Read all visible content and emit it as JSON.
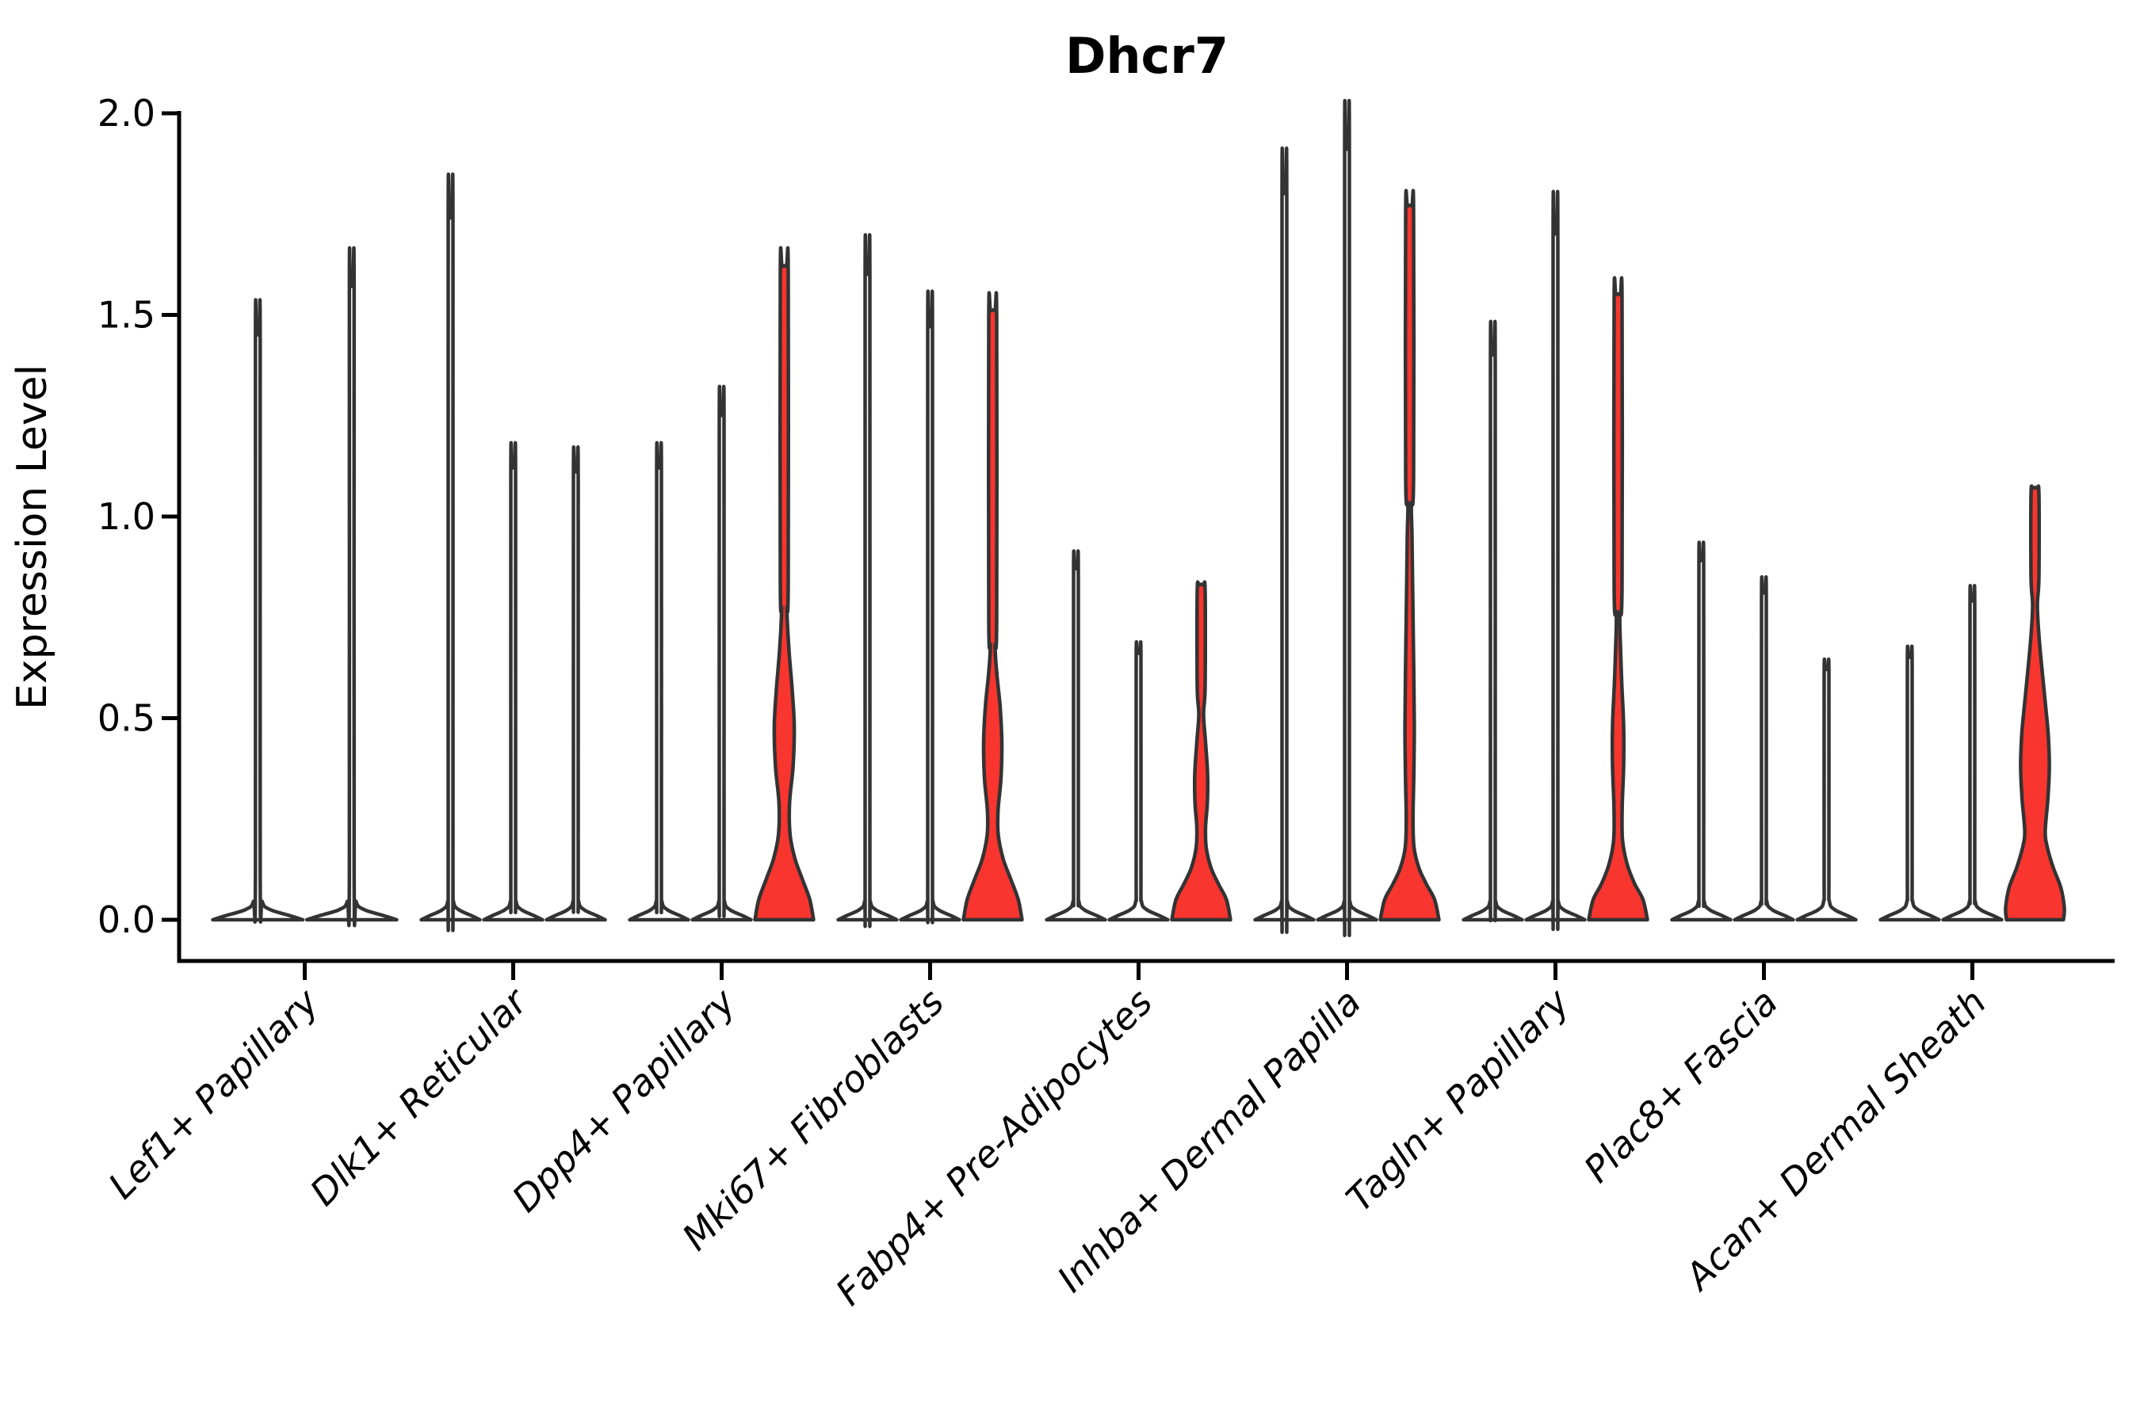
{
  "chart_data": {
    "type": "violin",
    "title": "Dhcr7",
    "ylabel": "Expression Level",
    "xlabel": "",
    "grid": false,
    "legend": null,
    "ylim": [
      0,
      2.0
    ],
    "yticks": [
      0.0,
      0.5,
      1.0,
      1.5,
      2.0
    ],
    "categories": [
      "Lef1+ Papillary",
      "Dlk1+ Reticular",
      "Dpp4+ Papillary",
      "Mki67+ Fibroblasts",
      "Fabp4+ Pre-Adipocytes",
      "Inhba+ Dermal Papilla",
      "Tagln+ Papillary",
      "Plac8+ Fascia",
      "Acan+ Dermal Sheath"
    ],
    "colors": {
      "violin_fill_highlight": "#f8352e",
      "violin_fill_plain": "#ffffff",
      "violin_outline": "#333333",
      "axis": "#000000",
      "background": "#ffffff"
    },
    "default_profile": [
      [
        0,
        1.0
      ],
      [
        0.01,
        0.72
      ],
      [
        0.025,
        0.28
      ],
      [
        0.045,
        0.1
      ]
    ],
    "groups": [
      {
        "category": "Lef1+ Papillary",
        "violins": [
          {
            "max": 1.45,
            "filled": false
          },
          {
            "max": 1.57,
            "filled": false
          }
        ]
      },
      {
        "category": "Dlk1+ Reticular",
        "violins": [
          {
            "max": 1.74,
            "filled": false
          },
          {
            "max": 1.12,
            "filled": false
          },
          {
            "max": 1.11,
            "filled": false
          }
        ]
      },
      {
        "category": "Dpp4+ Papillary",
        "violins": [
          {
            "max": 1.12,
            "filled": false
          },
          {
            "max": 1.25,
            "filled": false
          },
          {
            "max": 1.62,
            "filled": true,
            "profile": [
              [
                0,
                1.0
              ],
              [
                0.05,
                0.87
              ],
              [
                0.1,
                0.62
              ],
              [
                0.15,
                0.37
              ],
              [
                0.21,
                0.2
              ],
              [
                0.29,
                0.18
              ],
              [
                0.38,
                0.3
              ],
              [
                0.48,
                0.34
              ],
              [
                0.57,
                0.27
              ],
              [
                0.67,
                0.16
              ],
              [
                0.77,
                0.09
              ]
            ]
          }
        ]
      },
      {
        "category": "Mki67+ Fibroblasts",
        "violins": [
          {
            "max": 1.6,
            "filled": false
          },
          {
            "max": 1.47,
            "filled": false
          },
          {
            "max": 1.51,
            "filled": true,
            "profile": [
              [
                0,
                1.0
              ],
              [
                0.05,
                0.87
              ],
              [
                0.1,
                0.62
              ],
              [
                0.15,
                0.36
              ],
              [
                0.21,
                0.19
              ],
              [
                0.27,
                0.18
              ],
              [
                0.35,
                0.28
              ],
              [
                0.44,
                0.31
              ],
              [
                0.53,
                0.25
              ],
              [
                0.61,
                0.14
              ],
              [
                0.68,
                0.08
              ]
            ]
          }
        ]
      },
      {
        "category": "Fabp4+ Pre-Adipocytes",
        "violins": [
          {
            "max": 0.87,
            "filled": false
          },
          {
            "max": 0.66,
            "filled": false
          },
          {
            "max": 0.83,
            "filled": true,
            "profile": [
              [
                0,
                1.0
              ],
              [
                0.05,
                0.86
              ],
              [
                0.09,
                0.58
              ],
              [
                0.13,
                0.33
              ],
              [
                0.18,
                0.17
              ],
              [
                0.23,
                0.15
              ],
              [
                0.29,
                0.21
              ],
              [
                0.36,
                0.22
              ],
              [
                0.44,
                0.15
              ],
              [
                0.51,
                0.08
              ]
            ]
          }
        ]
      },
      {
        "category": "Inhba+ Dermal Papilla",
        "violins": [
          {
            "max": 1.8,
            "filled": false
          },
          {
            "max": 1.91,
            "filled": false
          },
          {
            "max": 1.77,
            "filled": true,
            "profile": [
              [
                0,
                1.0
              ],
              [
                0.05,
                0.85
              ],
              [
                0.09,
                0.56
              ],
              [
                0.13,
                0.31
              ],
              [
                0.18,
                0.15
              ],
              [
                0.25,
                0.115
              ],
              [
                0.35,
                0.14
              ],
              [
                0.48,
                0.16
              ],
              [
                0.62,
                0.14
              ],
              [
                0.78,
                0.11
              ],
              [
                0.95,
                0.08
              ],
              [
                1.03,
                0.06
              ]
            ]
          }
        ]
      },
      {
        "category": "Tagln+ Papillary",
        "violins": [
          {
            "max": 1.4,
            "filled": false
          },
          {
            "max": 1.7,
            "filled": false
          },
          {
            "max": 1.55,
            "filled": true,
            "profile": [
              [
                0,
                1.0
              ],
              [
                0.05,
                0.85
              ],
              [
                0.09,
                0.56
              ],
              [
                0.14,
                0.3
              ],
              [
                0.2,
                0.15
              ],
              [
                0.28,
                0.14
              ],
              [
                0.38,
                0.19
              ],
              [
                0.48,
                0.19
              ],
              [
                0.58,
                0.13
              ],
              [
                0.68,
                0.08
              ],
              [
                0.76,
                0.06
              ]
            ]
          }
        ]
      },
      {
        "category": "Plac8+ Fascia",
        "violins": [
          {
            "max": 0.89,
            "filled": false
          },
          {
            "max": 0.81,
            "filled": false
          },
          {
            "max": 0.62,
            "filled": false
          }
        ]
      },
      {
        "category": "Acan+ Dermal Sheath",
        "violins": [
          {
            "max": 0.65,
            "filled": false
          },
          {
            "max": 0.79,
            "filled": false
          },
          {
            "max": 1.07,
            "filled": true,
            "profile": [
              [
                0,
                0.97
              ],
              [
                0.03,
                1.0
              ],
              [
                0.08,
                0.88
              ],
              [
                0.13,
                0.62
              ],
              [
                0.18,
                0.42
              ],
              [
                0.22,
                0.35
              ],
              [
                0.3,
                0.44
              ],
              [
                0.38,
                0.49
              ],
              [
                0.46,
                0.45
              ],
              [
                0.54,
                0.35
              ],
              [
                0.62,
                0.24
              ],
              [
                0.7,
                0.14
              ],
              [
                0.78,
                0.08
              ]
            ]
          }
        ]
      }
    ]
  }
}
